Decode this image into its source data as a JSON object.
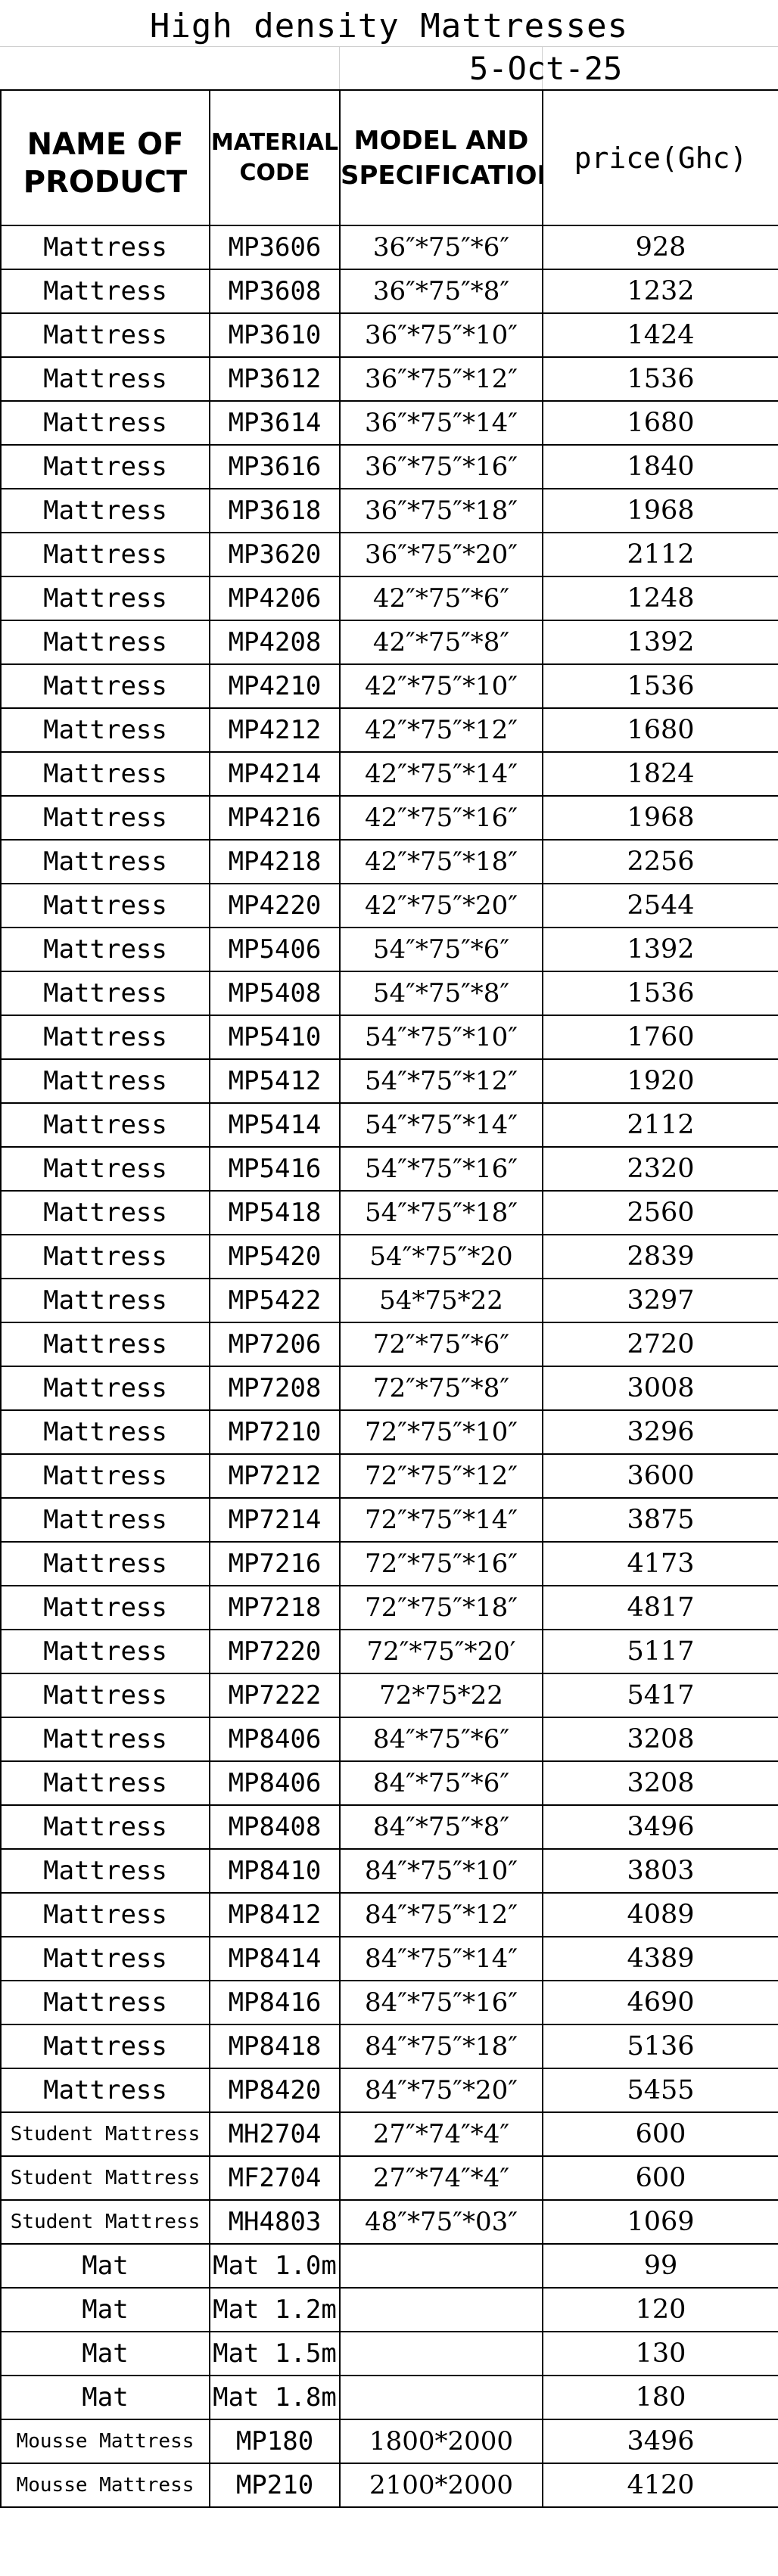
{
  "title": "High density Mattresses",
  "date": "5-Oct-25",
  "headers": {
    "name": [
      "NAME OF",
      "PRODUCT"
    ],
    "code": [
      "MATERIAL",
      "CODE"
    ],
    "model": [
      "MODEL AND",
      "SPECIFICATION"
    ],
    "price": "price(Ghc)"
  },
  "rows": [
    {
      "name": "Mattress",
      "code": "MP3606",
      "spec": "36″*75″*6″",
      "price": "928"
    },
    {
      "name": "Mattress",
      "code": "MP3608",
      "spec": "36″*75″*8″",
      "price": "1232"
    },
    {
      "name": "Mattress",
      "code": "MP3610",
      "spec": "36″*75″*10″",
      "price": "1424"
    },
    {
      "name": "Mattress",
      "code": "MP3612",
      "spec": "36″*75″*12″",
      "price": "1536"
    },
    {
      "name": "Mattress",
      "code": "MP3614",
      "spec": "36″*75″*14″",
      "price": "1680"
    },
    {
      "name": "Mattress",
      "code": "MP3616",
      "spec": "36″*75″*16″",
      "price": "1840"
    },
    {
      "name": "Mattress",
      "code": "MP3618",
      "spec": "36″*75″*18″",
      "price": "1968"
    },
    {
      "name": "Mattress",
      "code": "MP3620",
      "spec": "36″*75″*20″",
      "price": "2112"
    },
    {
      "name": "Mattress",
      "code": "MP4206",
      "spec": "42″*75″*6″",
      "price": "1248"
    },
    {
      "name": "Mattress",
      "code": "MP4208",
      "spec": "42″*75″*8″",
      "price": "1392"
    },
    {
      "name": "Mattress",
      "code": "MP4210",
      "spec": "42″*75″*10″",
      "price": "1536"
    },
    {
      "name": "Mattress",
      "code": "MP4212",
      "spec": "42″*75″*12″",
      "price": "1680"
    },
    {
      "name": "Mattress",
      "code": "MP4214",
      "spec": "42″*75″*14″",
      "price": "1824"
    },
    {
      "name": "Mattress",
      "code": "MP4216",
      "spec": "42″*75″*16″",
      "price": "1968"
    },
    {
      "name": "Mattress",
      "code": "MP4218",
      "spec": "42″*75″*18″",
      "price": "2256"
    },
    {
      "name": "Mattress",
      "code": "MP4220",
      "spec": "42″*75″*20″",
      "price": "2544"
    },
    {
      "name": "Mattress",
      "code": "MP5406",
      "spec": "54″*75″*6″",
      "price": "1392"
    },
    {
      "name": "Mattress",
      "code": "MP5408",
      "spec": "54″*75″*8″",
      "price": "1536"
    },
    {
      "name": "Mattress",
      "code": "MP5410",
      "spec": "54″*75″*10″",
      "price": "1760"
    },
    {
      "name": "Mattress",
      "code": "MP5412",
      "spec": "54″*75″*12″",
      "price": "1920"
    },
    {
      "name": "Mattress",
      "code": "MP5414",
      "spec": "54″*75″*14″",
      "price": "2112"
    },
    {
      "name": "Mattress",
      "code": "MP5416",
      "spec": "54″*75″*16″",
      "price": "2320"
    },
    {
      "name": "Mattress",
      "code": "MP5418",
      "spec": "54″*75″*18″",
      "price": "2560"
    },
    {
      "name": "Mattress",
      "code": "MP5420",
      "spec": "54″*75″*20",
      "price": "2839"
    },
    {
      "name": "Mattress",
      "code": "MP5422",
      "spec": "54*75*22",
      "price": "3297"
    },
    {
      "name": "Mattress",
      "code": "MP7206",
      "spec": "72″*75″*6″",
      "price": "2720"
    },
    {
      "name": "Mattress",
      "code": "MP7208",
      "spec": "72″*75″*8″",
      "price": "3008"
    },
    {
      "name": "Mattress",
      "code": "MP7210",
      "spec": "72″*75″*10″",
      "price": "3296"
    },
    {
      "name": "Mattress",
      "code": "MP7212",
      "spec": "72″*75″*12″",
      "price": "3600"
    },
    {
      "name": "Mattress",
      "code": "MP7214",
      "spec": "72″*75″*14″",
      "price": "3875"
    },
    {
      "name": "Mattress",
      "code": "MP7216",
      "spec": "72″*75″*16″",
      "price": "4173"
    },
    {
      "name": "Mattress",
      "code": "MP7218",
      "spec": "72″*75″*18″",
      "price": "4817"
    },
    {
      "name": "Mattress",
      "code": "MP7220",
      "spec": "72″*75″*20′",
      "price": "5117"
    },
    {
      "name": "Mattress",
      "code": "MP7222",
      "spec": "72*75*22",
      "price": "5417"
    },
    {
      "name": "Mattress",
      "code": "MP8406",
      "spec": "84″*75″*6″",
      "price": "3208"
    },
    {
      "name": "Mattress",
      "code": "MP8406",
      "spec": "84″*75″*6″",
      "price": "3208"
    },
    {
      "name": "Mattress",
      "code": "MP8408",
      "spec": "84″*75″*8″",
      "price": "3496"
    },
    {
      "name": "Mattress",
      "code": "MP8410",
      "spec": "84″*75″*10″",
      "price": "3803"
    },
    {
      "name": "Mattress",
      "code": "MP8412",
      "spec": "84″*75″*12″",
      "price": "4089"
    },
    {
      "name": "Mattress",
      "code": "MP8414",
      "spec": "84″*75″*14″",
      "price": "4389"
    },
    {
      "name": "Mattress",
      "code": "MP8416",
      "spec": "84″*75″*16″",
      "price": "4690"
    },
    {
      "name": "Mattress",
      "code": "MP8418",
      "spec": "84″*75″*18″",
      "price": "5136"
    },
    {
      "name": "Mattress",
      "code": "MP8420",
      "spec": "84″*75″*20″",
      "price": "5455"
    },
    {
      "name": "Student Mattress",
      "code": "MH2704",
      "spec": "27″*74″*4″",
      "price": "600"
    },
    {
      "name": "Student Mattress",
      "code": "MF2704",
      "spec": "27″*74″*4″",
      "price": "600"
    },
    {
      "name": "Student Mattress",
      "code": "MH4803",
      "spec": "48″*75″*03″",
      "price": "1069"
    },
    {
      "name": "Mat",
      "code": "Mat 1.0m",
      "spec": "",
      "price": "99"
    },
    {
      "name": "Mat",
      "code": "Mat 1.2m",
      "spec": "",
      "price": "120"
    },
    {
      "name": "Mat",
      "code": "Mat 1.5m",
      "spec": "",
      "price": "130"
    },
    {
      "name": "Mat",
      "code": "Mat 1.8m",
      "spec": "",
      "price": "180"
    },
    {
      "name": "Mousse Mattress",
      "code": "MP180",
      "spec": "1800*2000",
      "price": "3496"
    },
    {
      "name": "Mousse Mattress",
      "code": "MP210",
      "spec": "2100*2000",
      "price": "4120"
    }
  ]
}
